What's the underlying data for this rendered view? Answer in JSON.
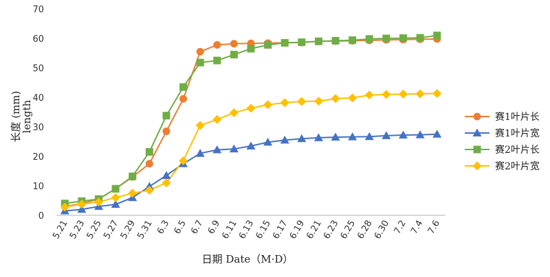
{
  "chart_data": {
    "type": "line",
    "title": "",
    "xlabel": "日期 Date（M·D）",
    "ylabel": "长度 (mm)",
    "ylabel_sub": "length",
    "ylim": [
      0,
      70
    ],
    "yticks": [
      0,
      10,
      20,
      30,
      40,
      50,
      60,
      70
    ],
    "grid": false,
    "legend_position": "right",
    "categories": [
      "5.21",
      "5.23",
      "5.25",
      "5.27",
      "5.29",
      "5.31",
      "6.3",
      "6.5",
      "6.7",
      "6.9",
      "6.11",
      "6.13",
      "6.15",
      "6.17",
      "6.19",
      "6.21",
      "6.23",
      "6.25",
      "6.28",
      "6.30",
      "7.2",
      "7.4",
      "7.6"
    ],
    "series": [
      {
        "name": "赛1叶片长",
        "color": "#ED7D31",
        "marker": "circle",
        "values": [
          3,
          4,
          5.5,
          9,
          13,
          17.5,
          28.5,
          39.5,
          55.5,
          57.8,
          58.2,
          58.3,
          58.4,
          58.5,
          58.6,
          59,
          59.1,
          59.2,
          59.3,
          59.5,
          59.6,
          59.7,
          59.8
        ]
      },
      {
        "name": "赛1叶片宽",
        "color": "#4472C4",
        "marker": "triangle",
        "values": [
          1.5,
          2,
          3,
          3.7,
          6,
          9.8,
          13.5,
          17.5,
          21,
          22.2,
          22.5,
          23.5,
          24.8,
          25.5,
          26,
          26.3,
          26.5,
          26.6,
          26.7,
          27,
          27.2,
          27.3,
          27.5
        ]
      },
      {
        "name": "赛2叶片长",
        "color": "#70AD47",
        "marker": "square",
        "values": [
          4,
          4.8,
          5.5,
          9,
          13.2,
          21.5,
          33.8,
          43.5,
          51.8,
          52.5,
          54.5,
          56.5,
          57.8,
          58.5,
          58.7,
          59,
          59.2,
          59.4,
          59.8,
          60,
          60.1,
          60.2,
          61
        ]
      },
      {
        "name": "赛2叶片宽",
        "color": "#FFC000",
        "marker": "diamond",
        "values": [
          2.8,
          3.8,
          4.5,
          6,
          7.5,
          8.5,
          11,
          18.5,
          30.5,
          32.5,
          34.8,
          36.3,
          37.5,
          38.2,
          38.6,
          38.7,
          39.6,
          39.8,
          40.8,
          41,
          41.1,
          41.2,
          41.3
        ]
      }
    ]
  }
}
